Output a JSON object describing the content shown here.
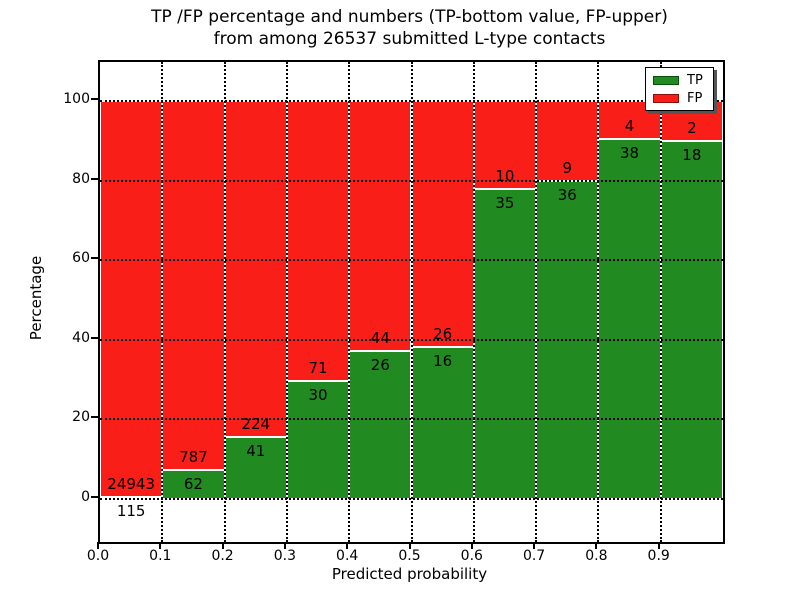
{
  "figure": {
    "title_line1": "TP /FP percentage and numbers (TP-bottom value, FP-upper)",
    "title_line2": "from among 26537 submitted L-type contacts"
  },
  "chart_data": {
    "type": "bar",
    "stacked": true,
    "normalized_to_percent": true,
    "title": "TP /FP percentage and numbers (TP-bottom value, FP-upper)\nfrom among 26537 submitted L-type contacts",
    "xlabel": "Predicted probability",
    "ylabel": "Percentage",
    "total_contacts": 26537,
    "x_bin_edges": [
      0.0,
      0.1,
      0.2,
      0.3,
      0.4,
      0.5,
      0.6,
      0.7,
      0.8,
      0.9,
      1.0
    ],
    "xtick_labels": [
      "0.0",
      "0.1",
      "0.2",
      "0.3",
      "0.4",
      "0.5",
      "0.6",
      "0.7",
      "0.8",
      "0.9"
    ],
    "ytick_values": [
      0,
      20,
      40,
      60,
      80,
      100
    ],
    "xlim": [
      0.0,
      1.0
    ],
    "ylim": [
      -10.8,
      109.8
    ],
    "grid": "dotted",
    "legend": {
      "position": "upper-right",
      "entries": [
        {
          "label": "TP",
          "color": "#218a21",
          "edge": "#0c4f0c"
        },
        {
          "label": "FP",
          "color": "#fa1e19",
          "edge": "#8c0f0b"
        }
      ]
    },
    "series": [
      {
        "name": "TP",
        "color": "#218a21",
        "counts": [
          115,
          62,
          41,
          30,
          26,
          16,
          35,
          36,
          38,
          18
        ]
      },
      {
        "name": "FP",
        "color": "#fa1e19",
        "counts": [
          24943,
          787,
          224,
          71,
          44,
          26,
          10,
          9,
          4,
          2
        ]
      }
    ],
    "tp_percent_of_bin": [
      0.46,
      7.3,
      15.47,
      29.7,
      37.14,
      38.1,
      77.78,
      80.0,
      90.48,
      90.0
    ]
  },
  "colors": {
    "tp_green": "#218a21",
    "fp_red": "#fa1e19",
    "background": "#ffffff",
    "grid_and_frame": "#000000"
  }
}
